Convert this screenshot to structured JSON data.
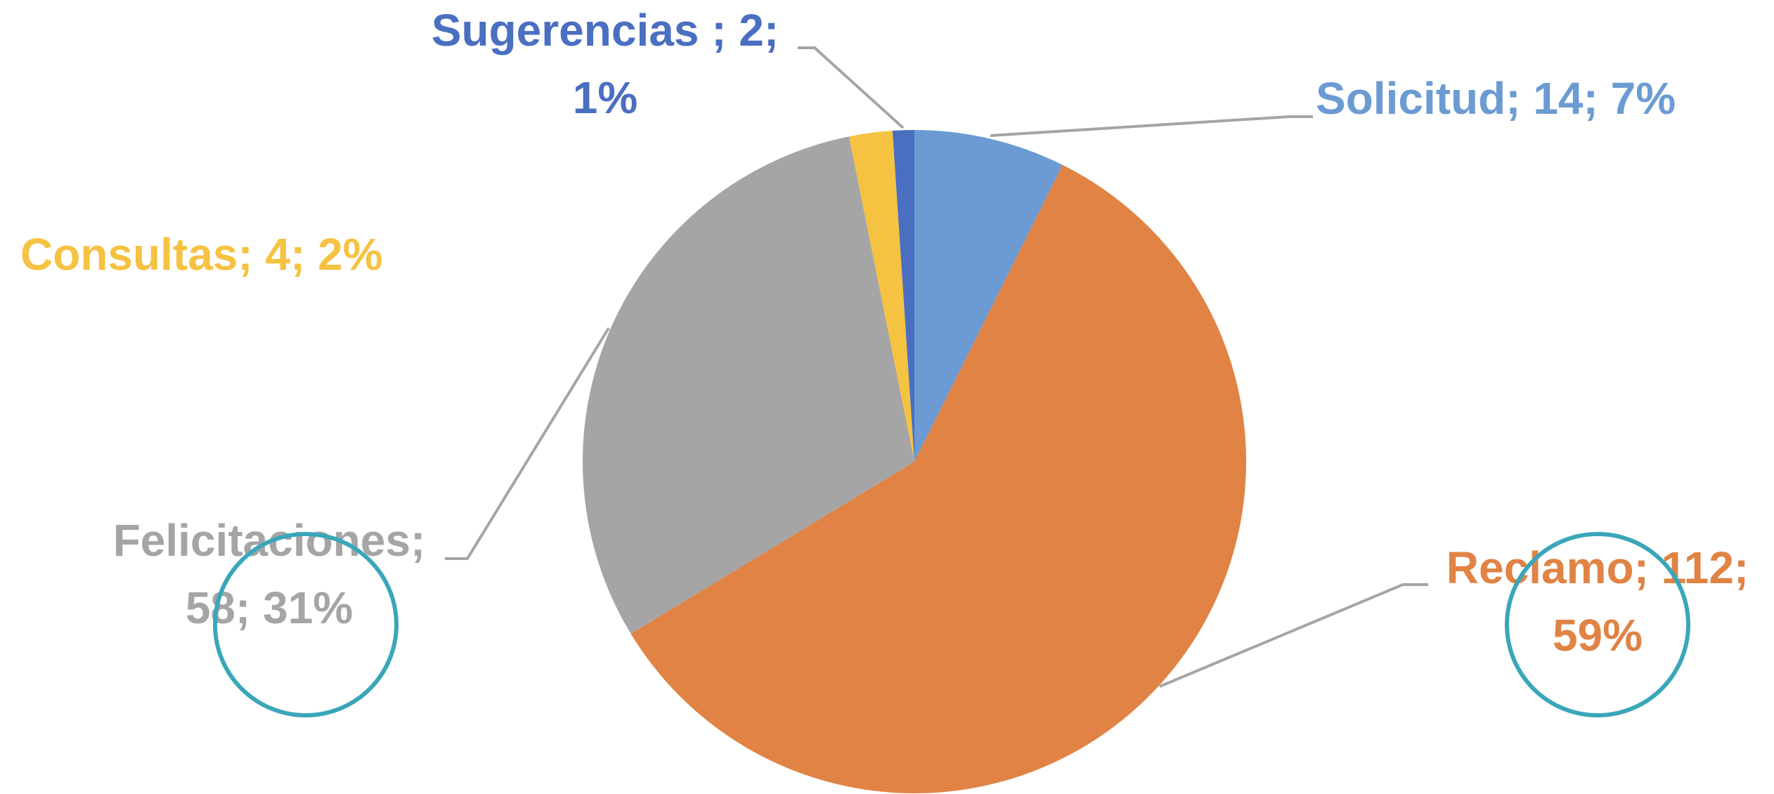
{
  "chart_data": {
    "type": "pie",
    "values": [
      14,
      112,
      58,
      4,
      2
    ],
    "value_labels": [
      [
        "Solicitud; 14; 7%"
      ],
      [
        "Reclamo; 112;",
        "59%"
      ],
      [
        "Felicitaciones;",
        "58; 31%"
      ],
      [
        "Consultas; 4; 2%"
      ],
      [
        "Sugerencias ; 2;",
        "1%"
      ]
    ],
    "colors": [
      "#6b9bd2",
      "#e08344",
      "#a5a5a5",
      "#f5c242",
      "#4a6fc1"
    ]
  }
}
